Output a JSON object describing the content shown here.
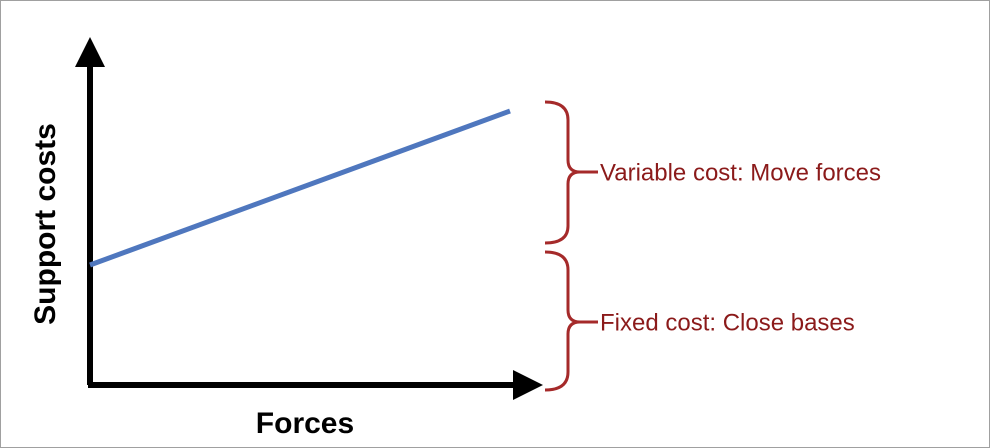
{
  "y_axis": {
    "label": "Support costs"
  },
  "x_axis": {
    "label": "Forces"
  },
  "annotations": [
    {
      "label": "Variable cost: Move forces"
    },
    {
      "label": "Fixed cost: Close bases"
    }
  ]
}
